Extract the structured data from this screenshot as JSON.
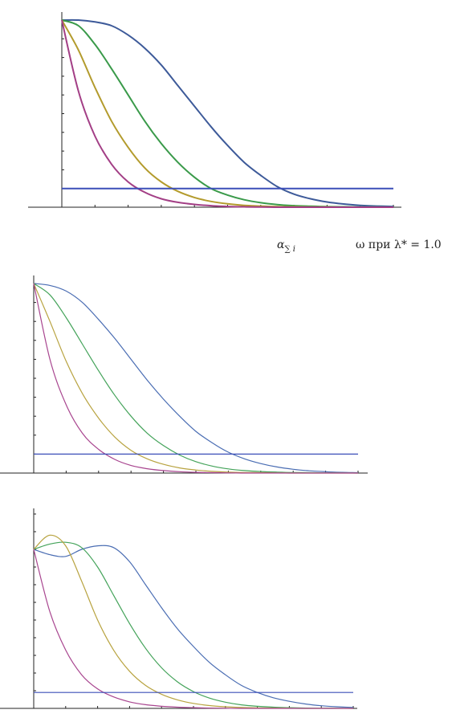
{
  "caption": {
    "left": "α",
    "left_sub": "∑ i",
    "right": "ω при λ* = 1.0"
  },
  "chart_data": [
    {
      "type": "line",
      "title": "",
      "xlabel": "",
      "ylabel": "",
      "xlim": [
        0,
        10
      ],
      "ylim": [
        0,
        1
      ],
      "grid": false,
      "x": [
        0,
        0.5,
        1,
        1.5,
        2,
        2.5,
        3,
        3.5,
        4,
        4.5,
        5,
        5.5,
        6,
        6.5,
        7,
        7.5,
        8,
        8.5,
        9,
        9.5,
        10
      ],
      "series": [
        {
          "color": "#3d5a99",
          "values": [
            1,
            1,
            0.99,
            0.97,
            0.92,
            0.85,
            0.76,
            0.65,
            0.54,
            0.43,
            0.33,
            0.24,
            0.17,
            0.11,
            0.07,
            0.045,
            0.028,
            0.017,
            0.01,
            0.006,
            0.004
          ]
        },
        {
          "color": "#3a9a4a",
          "values": [
            1,
            0.97,
            0.87,
            0.74,
            0.6,
            0.46,
            0.34,
            0.24,
            0.16,
            0.1,
            0.065,
            0.04,
            0.024,
            0.014,
            0.008,
            0.005,
            0.003,
            0.002,
            0.001,
            0.001,
            0.0
          ]
        },
        {
          "color": "#b39b2d",
          "values": [
            1,
            0.84,
            0.64,
            0.46,
            0.32,
            0.21,
            0.135,
            0.085,
            0.052,
            0.031,
            0.018,
            0.01,
            0.006,
            0.003,
            0.002,
            0.001,
            0.001,
            0.0,
            0.0,
            0.0,
            0.0
          ]
        },
        {
          "color": "#a33f86",
          "values": [
            1,
            0.62,
            0.38,
            0.23,
            0.135,
            0.08,
            0.045,
            0.026,
            0.015,
            0.008,
            0.004,
            0.002,
            0.001,
            0.0,
            0.0,
            0.0,
            0.0,
            0.0,
            0.0,
            0.0,
            0.0
          ]
        },
        {
          "color": "#3b4fb8",
          "values": [
            0.1,
            0.1,
            0.1,
            0.1,
            0.1,
            0.1,
            0.1,
            0.1,
            0.1,
            0.1,
            0.1,
            0.1,
            0.1,
            0.1,
            0.1,
            0.1,
            0.1,
            0.1,
            0.1,
            0.1,
            0.1
          ]
        }
      ]
    },
    {
      "type": "line",
      "title": "",
      "xlabel": "",
      "ylabel": "",
      "xlim": [
        0,
        10
      ],
      "ylim": [
        0,
        1
      ],
      "grid": false,
      "x": [
        0,
        0.5,
        1,
        1.5,
        2,
        2.5,
        3,
        3.5,
        4,
        4.5,
        5,
        5.5,
        6,
        6.5,
        7,
        7.5,
        8,
        8.5,
        9,
        9.5,
        10
      ],
      "series": [
        {
          "color": "#4a6db3",
          "values": [
            1,
            0.99,
            0.96,
            0.9,
            0.81,
            0.71,
            0.6,
            0.49,
            0.39,
            0.3,
            0.22,
            0.16,
            0.11,
            0.075,
            0.05,
            0.032,
            0.02,
            0.012,
            0.007,
            0.004,
            0.002
          ]
        },
        {
          "color": "#44a35a",
          "values": [
            1,
            0.94,
            0.82,
            0.68,
            0.54,
            0.41,
            0.3,
            0.21,
            0.145,
            0.095,
            0.06,
            0.037,
            0.022,
            0.013,
            0.008,
            0.005,
            0.003,
            0.002,
            0.001,
            0.001,
            0.0
          ]
        },
        {
          "color": "#b8a340",
          "values": [
            1,
            0.8,
            0.59,
            0.42,
            0.29,
            0.19,
            0.12,
            0.075,
            0.046,
            0.027,
            0.016,
            0.009,
            0.005,
            0.003,
            0.002,
            0.001,
            0.0,
            0.0,
            0.0,
            0.0,
            0.0
          ]
        },
        {
          "color": "#a8458f",
          "values": [
            1,
            0.6,
            0.36,
            0.21,
            0.125,
            0.072,
            0.04,
            0.023,
            0.013,
            0.007,
            0.004,
            0.002,
            0.001,
            0.0,
            0.0,
            0.0,
            0.0,
            0.0,
            0.0,
            0.0,
            0.0
          ]
        },
        {
          "color": "#3b4fb8",
          "values": [
            0.1,
            0.1,
            0.1,
            0.1,
            0.1,
            0.1,
            0.1,
            0.1,
            0.1,
            0.1,
            0.1,
            0.1,
            0.1,
            0.1,
            0.1,
            0.1,
            0.1,
            0.1,
            0.1,
            0.1,
            0.1
          ]
        }
      ]
    },
    {
      "type": "line",
      "title": "",
      "xlabel": "",
      "ylabel": "",
      "xlim": [
        0,
        10
      ],
      "ylim": [
        0,
        1.1
      ],
      "grid": false,
      "x": [
        0,
        0.5,
        1,
        1.5,
        2,
        2.5,
        3,
        3.5,
        4,
        4.5,
        5,
        5.5,
        6,
        6.5,
        7,
        7.5,
        8,
        8.5,
        9,
        9.5,
        10
      ],
      "series": [
        {
          "color": "#4a6db3",
          "values": [
            0.9,
            0.87,
            0.86,
            0.9,
            0.92,
            0.91,
            0.83,
            0.7,
            0.57,
            0.45,
            0.35,
            0.26,
            0.19,
            0.13,
            0.09,
            0.06,
            0.04,
            0.025,
            0.015,
            0.009,
            0.005
          ]
        },
        {
          "color": "#44a35a",
          "values": [
            0.9,
            0.93,
            0.94,
            0.91,
            0.8,
            0.64,
            0.48,
            0.34,
            0.23,
            0.15,
            0.095,
            0.058,
            0.035,
            0.02,
            0.012,
            0.007,
            0.004,
            0.002,
            0.001,
            0.001,
            0.0
          ]
        },
        {
          "color": "#b8a340",
          "values": [
            0.9,
            0.98,
            0.92,
            0.72,
            0.5,
            0.33,
            0.21,
            0.13,
            0.08,
            0.048,
            0.028,
            0.016,
            0.009,
            0.005,
            0.003,
            0.002,
            0.001,
            0.0,
            0.0,
            0.0,
            0.0
          ]
        },
        {
          "color": "#a8458f",
          "values": [
            0.9,
            0.55,
            0.33,
            0.19,
            0.11,
            0.065,
            0.037,
            0.021,
            0.012,
            0.007,
            0.004,
            0.002,
            0.001,
            0.0,
            0.0,
            0.0,
            0.0,
            0.0,
            0.0,
            0.0,
            0.0
          ]
        },
        {
          "color": "#3b4fb8",
          "values": [
            0.09,
            0.09,
            0.09,
            0.09,
            0.09,
            0.09,
            0.09,
            0.09,
            0.09,
            0.09,
            0.09,
            0.09,
            0.09,
            0.09,
            0.09,
            0.09,
            0.09,
            0.09,
            0.09,
            0.09,
            0.09
          ]
        }
      ]
    }
  ]
}
